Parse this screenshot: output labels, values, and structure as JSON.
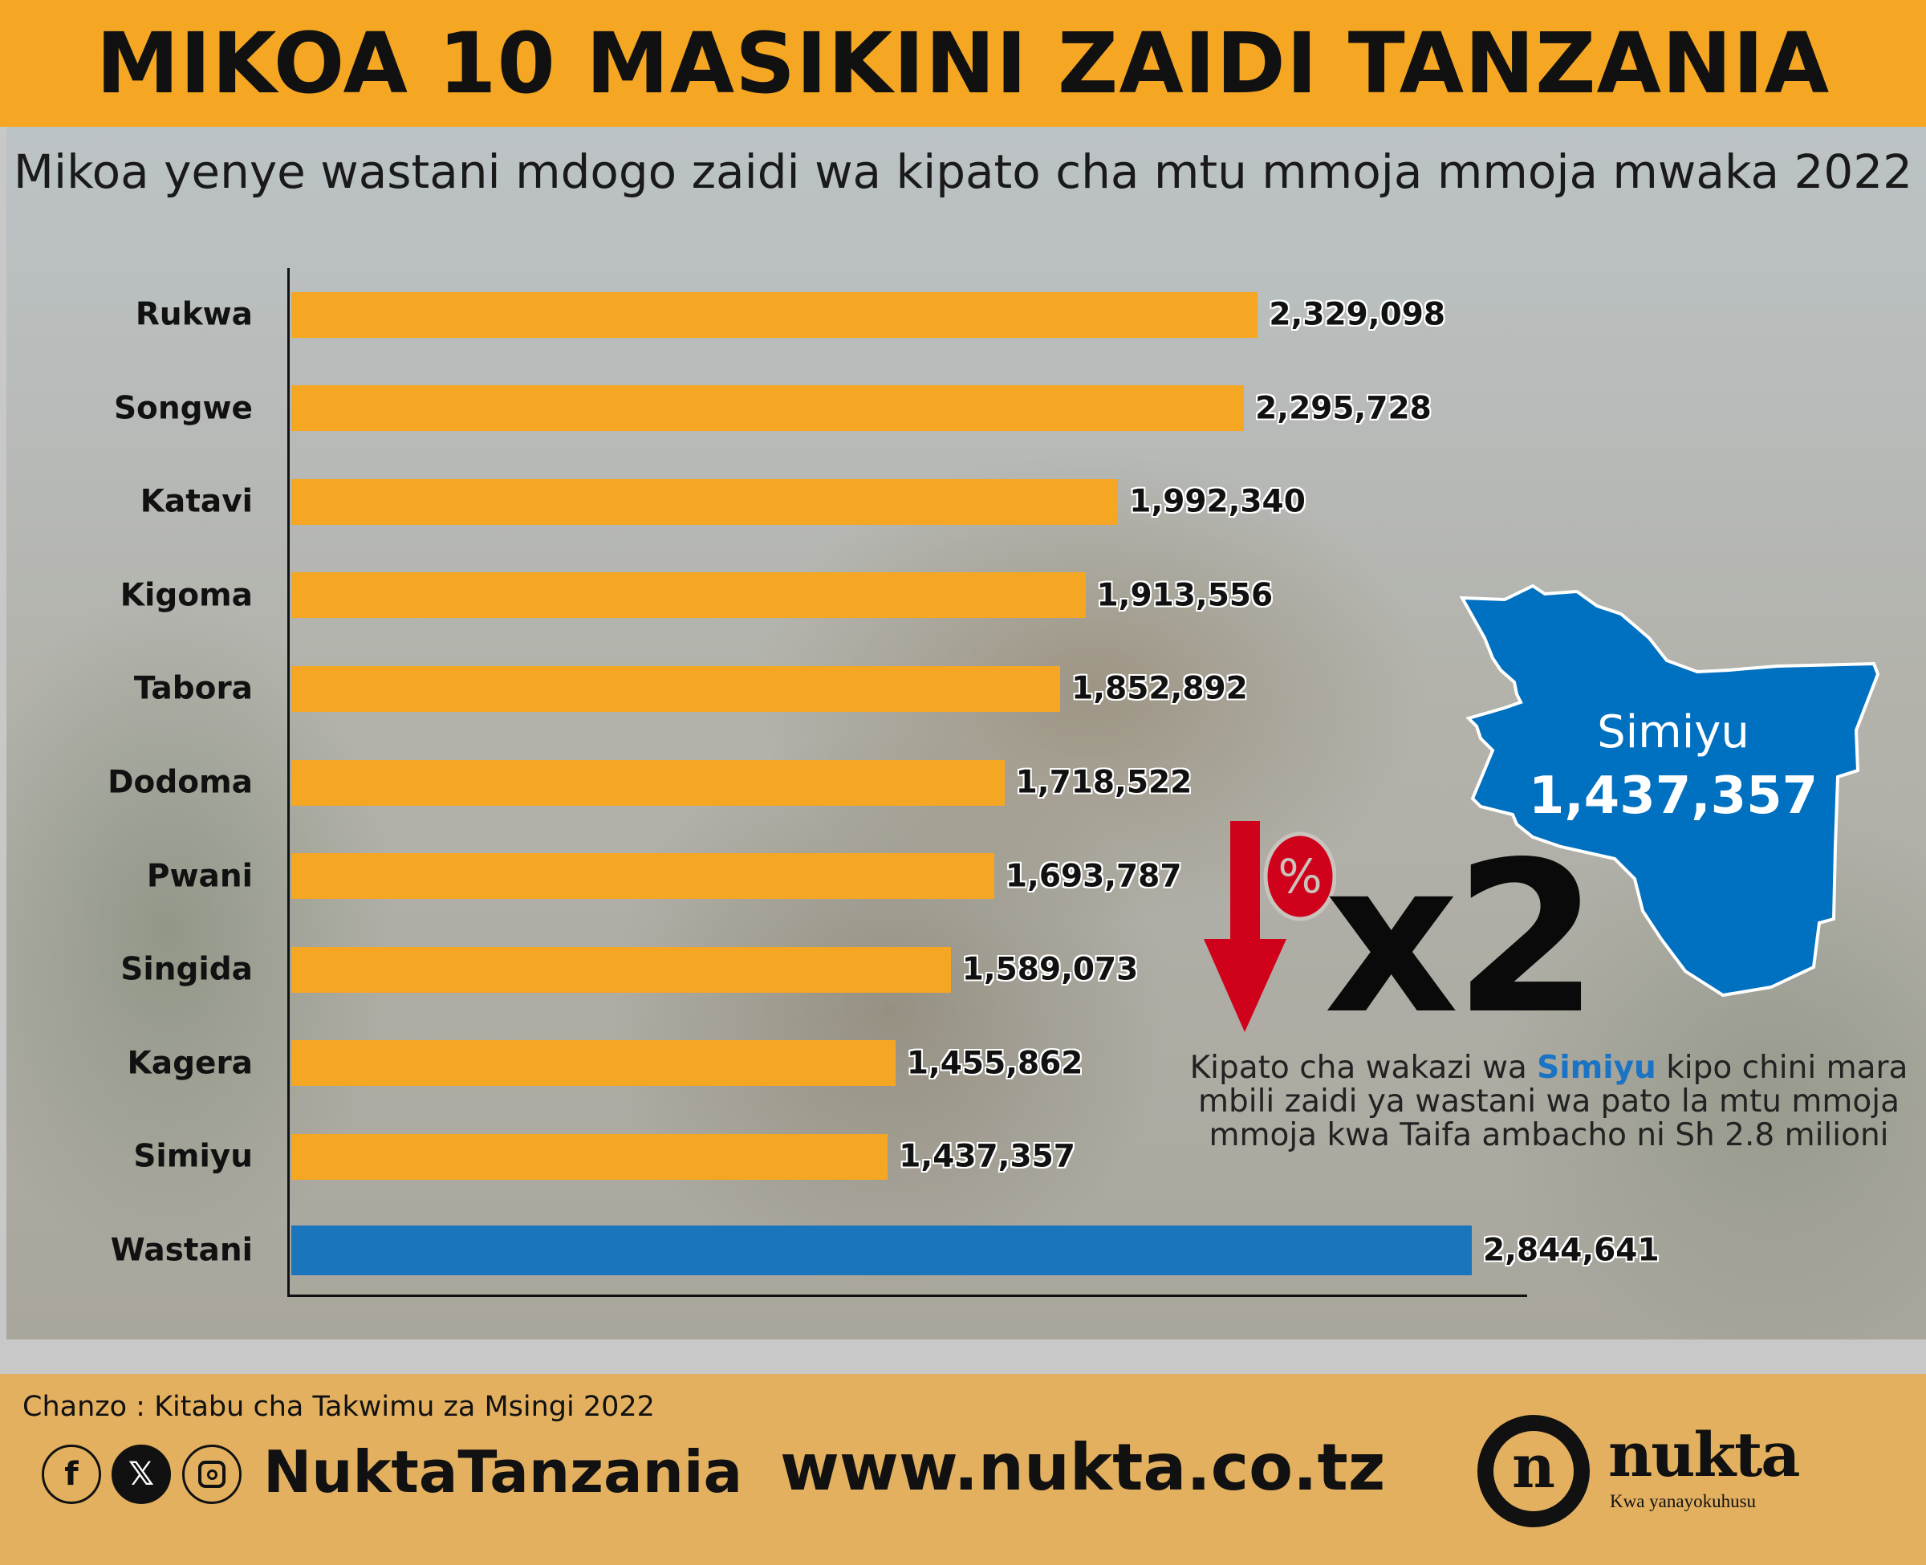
{
  "title": "MIKOA 10 MASIKINI ZAIDI TANZANIA",
  "subtitle": "Mikoa yenye wastani mdogo zaidi wa kipato cha mtu mmoja mmoja mwaka 2022",
  "chart_data": {
    "type": "bar",
    "orientation": "horizontal",
    "categories": [
      "Rukwa",
      "Songwe",
      "Katavi",
      "Kigoma",
      "Tabora",
      "Dodoma",
      "Pwani",
      "Singida",
      "Kagera",
      "Simiyu",
      "Wastani"
    ],
    "values": [
      2329098,
      2295728,
      1992340,
      1913556,
      1852892,
      1718522,
      1693787,
      1589073,
      1455862,
      1437357,
      2844641
    ],
    "value_labels": [
      "2,329,098",
      "2,295,728",
      "1,992,340",
      "1,913,556",
      "1,852,892",
      "1,718,522",
      "1,693,787",
      "1,589,073",
      "1,455,862",
      "1,437,357",
      "2,844,641"
    ],
    "colors": {
      "region": "#F5A623",
      "average": "#1B75BC"
    },
    "xlim": [
      0,
      2844641
    ],
    "grid": false
  },
  "highlight": {
    "map_name": "Simiyu",
    "map_value": "1,437,357",
    "map_color": "#0070C0",
    "multiplier": "x2",
    "percent_symbol": "%",
    "note_before": "Kipato cha wakazi wa ",
    "note_highlight": "Simiyu",
    "note_after": " kipo chini mara mbili zaidi ya wastani wa pato la mtu mmoja mmoja kwa Taifa ambacho ni Sh 2.8 milioni"
  },
  "footer": {
    "source": "Chanzo : Kitabu cha Takwimu za Msingi 2022",
    "social_icons": [
      "facebook-icon",
      "x-icon",
      "instagram-icon"
    ],
    "handle": "NuktaTanzania",
    "website": "www.nukta.co.tz",
    "logo_letter": "n",
    "logo_word": "nukta",
    "logo_tagline": "Kwa yanayokuhusu"
  }
}
